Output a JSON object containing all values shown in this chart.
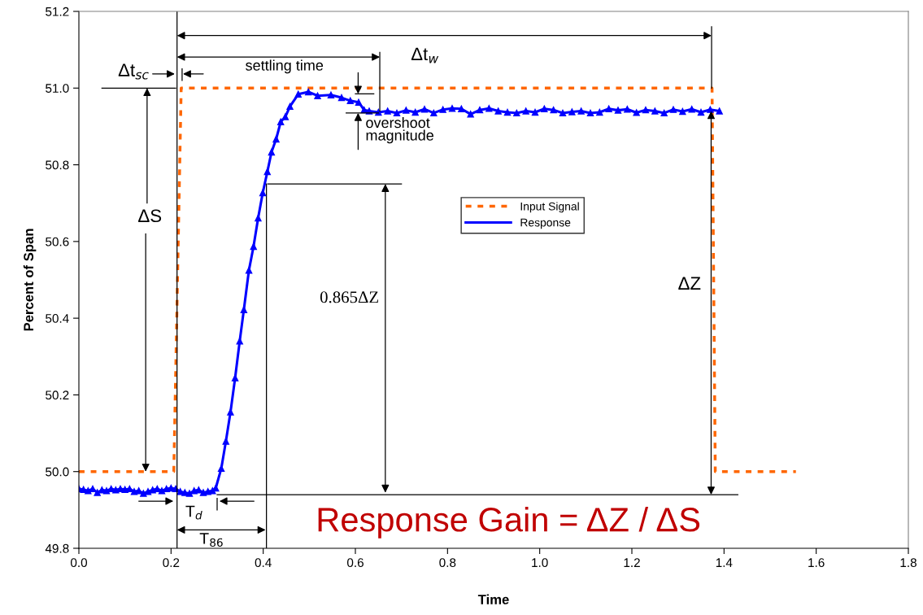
{
  "chart_data": {
    "type": "line",
    "xlabel": "Time",
    "ylabel": "Percent of Span",
    "xlim": [
      0.0,
      1.8
    ],
    "xticks": [
      {
        "value": 0,
        "label": "0.0"
      },
      0.2,
      0.4,
      0.6,
      0.8,
      {
        "value": 1,
        "label": "1.0"
      },
      1.2,
      1.4,
      1.6,
      1.8
    ],
    "ylim": [
      49.8,
      51.2
    ],
    "yticks": [
      49.8,
      {
        "value": 50,
        "label": "50.0"
      },
      50.2,
      50.4,
      50.6,
      50.8,
      {
        "value": 51,
        "label": "51.0"
      },
      51.2
    ],
    "ref_lines": [
      {
        "axis": "x",
        "value": 0.213,
        "color": "#000000"
      }
    ],
    "grid": false,
    "legend": "center",
    "series": [
      {
        "name": "Input Signal",
        "color": "#ff6600",
        "line_style": "dashed",
        "marker": "none",
        "x": [
          0.0,
          0.206,
          0.222,
          1.374,
          1.381,
          1.556
        ],
        "values": [
          50.0,
          50.0,
          51.0,
          51.0,
          50.0,
          50.0
        ]
      },
      {
        "type": "line",
        "color": "#000000",
        "line_style": "solid",
        "marker": "none",
        "x": [
          0.407,
          0.407
        ],
        "values": [
          49.8,
          50.75
        ]
      },
      {
        "name": "Response",
        "color": "#0000ff",
        "line_style": "solid",
        "marker": "triangle",
        "x": [
          0.0,
          0.01,
          0.02,
          0.03,
          0.04,
          0.05,
          0.06,
          0.07,
          0.08,
          0.09,
          0.1,
          0.11,
          0.12,
          0.13,
          0.14,
          0.15,
          0.16,
          0.17,
          0.18,
          0.19,
          0.2,
          0.21,
          0.22,
          0.23,
          0.24,
          0.25,
          0.26,
          0.27,
          0.28,
          0.29,
          0.297,
          0.309,
          0.319,
          0.329,
          0.339,
          0.349,
          0.358,
          0.369,
          0.379,
          0.389,
          0.399,
          0.409,
          0.418,
          0.428,
          0.438,
          0.448,
          0.458,
          0.476,
          0.498,
          0.518,
          0.547,
          0.57,
          0.589,
          0.607,
          0.619,
          0.63,
          0.65,
          0.67,
          0.69,
          0.71,
          0.73,
          0.75,
          0.77,
          0.79,
          0.81,
          0.83,
          0.85,
          0.87,
          0.89,
          0.91,
          0.93,
          0.95,
          0.97,
          0.99,
          1.01,
          1.03,
          1.05,
          1.07,
          1.09,
          1.11,
          1.13,
          1.15,
          1.17,
          1.19,
          1.21,
          1.23,
          1.25,
          1.27,
          1.29,
          1.31,
          1.33,
          1.35,
          1.37,
          1.39
        ],
        "values": [
          49.955,
          49.953,
          49.95,
          49.955,
          49.945,
          49.952,
          49.95,
          49.955,
          49.952,
          49.955,
          49.953,
          49.955,
          49.948,
          49.95,
          49.943,
          49.948,
          49.952,
          49.955,
          49.95,
          49.955,
          49.957,
          49.955,
          49.948,
          49.945,
          49.943,
          49.95,
          49.952,
          49.945,
          49.948,
          49.95,
          49.957,
          50.008,
          50.079,
          50.155,
          50.244,
          50.34,
          50.422,
          50.525,
          50.587,
          50.661,
          50.727,
          50.782,
          50.833,
          50.867,
          50.912,
          50.925,
          50.952,
          50.984,
          50.99,
          50.98,
          50.982,
          50.975,
          50.967,
          50.963,
          50.943,
          50.94,
          50.937,
          50.94,
          50.935,
          50.942,
          50.937,
          50.945,
          50.935,
          50.944,
          50.947,
          50.946,
          50.932,
          50.943,
          50.947,
          50.94,
          50.937,
          50.935,
          50.94,
          50.937,
          50.946,
          50.943,
          50.935,
          50.938,
          50.94,
          50.935,
          50.937,
          50.946,
          50.942,
          50.945,
          50.936,
          50.943,
          50.94,
          50.935,
          50.944,
          50.939,
          50.945,
          50.937,
          50.944,
          50.94
        ]
      }
    ],
    "annotations": [
      "Δt$_{w}$",
      "settling time",
      {
        "text": "Δt$_{sc}$",
        "x": 0.213,
        "y": 51.0
      },
      {
        "text": "ΔS",
        "x": 0.145,
        "y": 50.0
      },
      "overshoot\nmagnitude",
      "0.865ΔZ",
      "ΔZ",
      "T$_{d}$",
      "T$_{86}$",
      "Response Gain = ΔZ / ΔS"
    ]
  }
}
